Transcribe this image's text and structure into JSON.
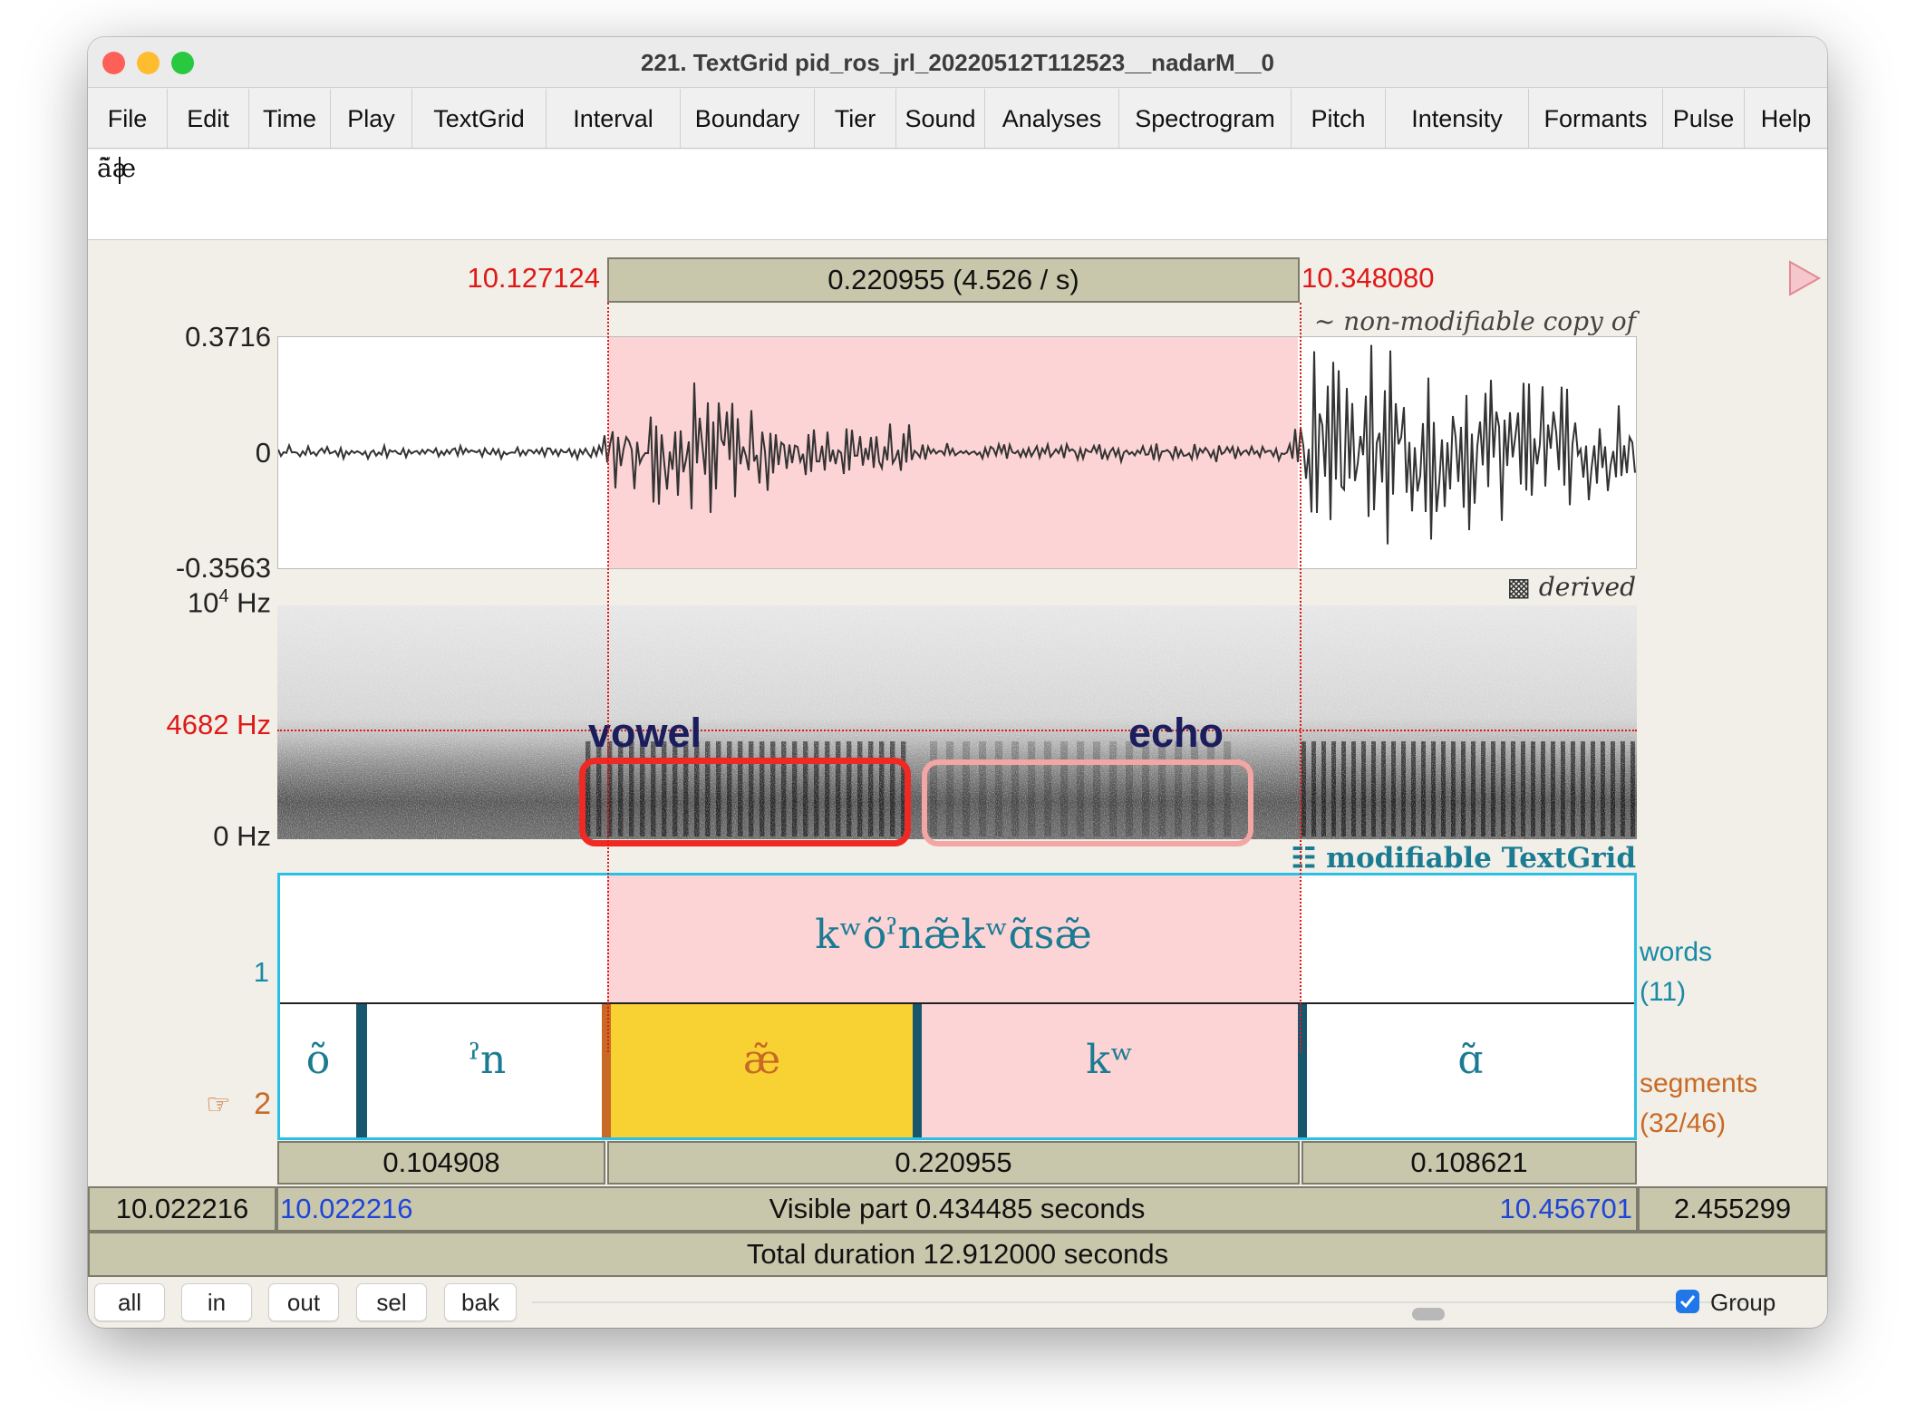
{
  "window": {
    "title": "221. TextGrid pid_ros_jrl_20220512T112523__nadarM__0"
  },
  "menu": [
    "File",
    "Edit",
    "Time",
    "Play",
    "TextGrid",
    "Interval",
    "Boundary",
    "Tier",
    "Sound",
    "Analyses",
    "Spectrogram",
    "Pitch",
    "Intensity",
    "Formants",
    "Pulse",
    "Help"
  ],
  "text_field": {
    "value": "ã̃æ"
  },
  "selection": {
    "start": "10.127124",
    "end": "10.348080",
    "duration_label": "0.220955 (4.526 / s)"
  },
  "waveform": {
    "max": "0.3716",
    "zero": "0",
    "min": "-0.3563",
    "caption": "~ non-modifiable copy of sound"
  },
  "spectrogram": {
    "top": "10",
    "top_exp": "4",
    "top_unit": " Hz",
    "cursor_freq": "4682 Hz",
    "bottom": "0 Hz",
    "caption": "▩ derived spectrogram"
  },
  "annotations": {
    "vowel": "vowel",
    "echo": "echo"
  },
  "textgrid": {
    "caption": "☷ modifiable TextGrid",
    "tier1": {
      "number": "1",
      "name": "words",
      "count": "(11)",
      "interval_text": "kʷõˀnæ̃kʷɑ̃sæ̃"
    },
    "tier2": {
      "pointer": "☞",
      "number": "2",
      "name": "segments",
      "count": "(32/46)",
      "intervals": [
        "õ",
        "ˀn",
        "æ̃",
        "kʷ",
        "ɑ̃"
      ]
    }
  },
  "durations": [
    "0.104908",
    "0.220955",
    "0.108621"
  ],
  "visible": {
    "left_total": "10.022216",
    "start": "10.022216",
    "label": "Visible part 0.434485 seconds",
    "end": "10.456701",
    "right_total": "2.455299"
  },
  "total": {
    "label": "Total duration 12.912000 seconds"
  },
  "buttons": [
    "all",
    "in",
    "out",
    "sel",
    "bak"
  ],
  "group": {
    "label": "Group",
    "checked": true
  },
  "colors": {
    "selection": "#fcd4d6",
    "selected_segment": "#f8d232",
    "tier_border": "#29c0e8",
    "cursor": "#e01818"
  }
}
